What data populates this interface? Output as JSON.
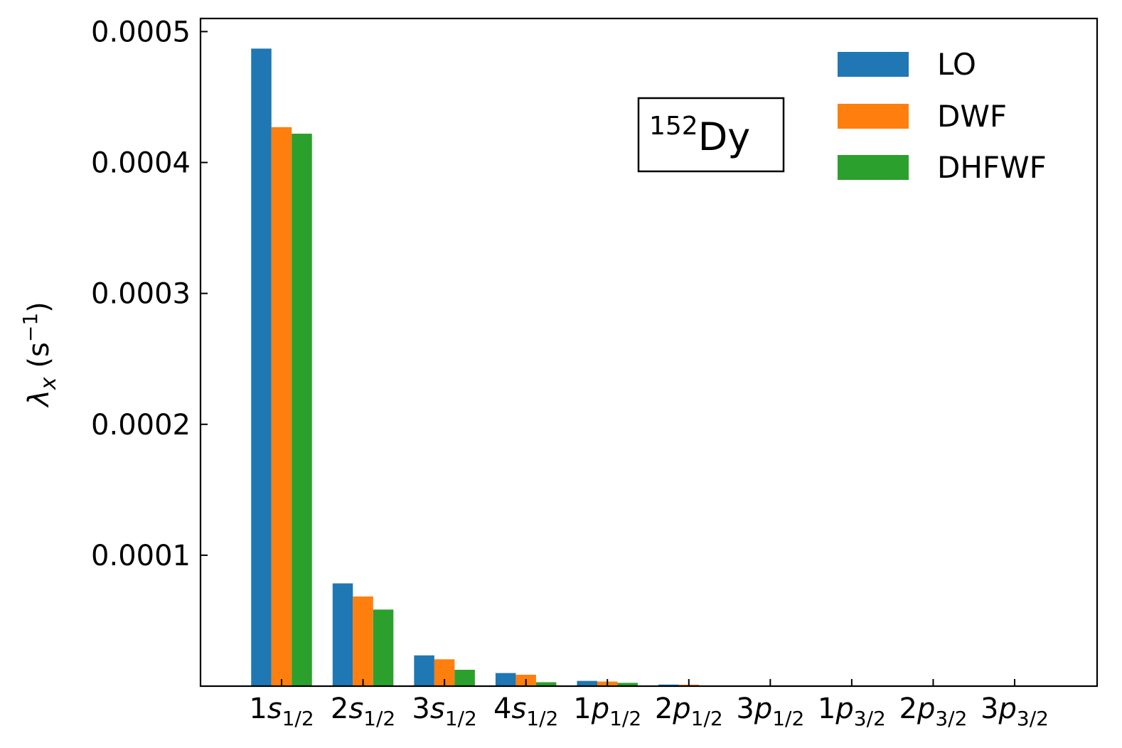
{
  "chart_data": {
    "type": "bar",
    "title": "",
    "xlabel": "",
    "ylabel": "λx (s⁻¹)",
    "ylabel_parts": {
      "symbol": "λ",
      "subscript": "x",
      "unit_open": "(s",
      "unit_exp": "−1",
      "unit_close": ")"
    },
    "categories": [
      "1s1/2",
      "2s1/2",
      "3s1/2",
      "4s1/2",
      "1p1/2",
      "2p1/2",
      "3p1/2",
      "1p3/2",
      "2p3/2",
      "3p3/2"
    ],
    "category_parts": [
      {
        "n": "1",
        "l": "s",
        "j": "1/2"
      },
      {
        "n": "2",
        "l": "s",
        "j": "1/2"
      },
      {
        "n": "3",
        "l": "s",
        "j": "1/2"
      },
      {
        "n": "4",
        "l": "s",
        "j": "1/2"
      },
      {
        "n": "1",
        "l": "p",
        "j": "1/2"
      },
      {
        "n": "2",
        "l": "p",
        "j": "1/2"
      },
      {
        "n": "3",
        "l": "p",
        "j": "1/2"
      },
      {
        "n": "1",
        "l": "p",
        "j": "3/2"
      },
      {
        "n": "2",
        "l": "p",
        "j": "3/2"
      },
      {
        "n": "3",
        "l": "p",
        "j": "3/2"
      }
    ],
    "series": [
      {
        "name": "LO",
        "color": "#1f77b4",
        "values": [
          0.000487,
          7.85e-05,
          2.35e-05,
          1e-05,
          4e-06,
          1.2e-06,
          3e-07,
          1e-07,
          0.0,
          0.0
        ]
      },
      {
        "name": "DWF",
        "color": "#ff7f0e",
        "values": [
          0.000427,
          6.85e-05,
          2.05e-05,
          8.7e-06,
          3.5e-06,
          1.1e-06,
          3e-07,
          1e-07,
          0.0,
          0.0
        ]
      },
      {
        "name": "DHFWF",
        "color": "#2ca02c",
        "values": [
          0.000422,
          5.85e-05,
          1.25e-05,
          3e-06,
          2.5e-06,
          5e-07,
          1e-07,
          0.0,
          0.0,
          0.0
        ]
      }
    ],
    "ylim": [
      0,
      0.00051
    ],
    "yticks": [
      0.0001,
      0.0002,
      0.0003,
      0.0004,
      0.0005
    ],
    "ytick_labels": [
      "0.0001",
      "0.0002",
      "0.0003",
      "0.0004",
      "0.0005"
    ],
    "legend_position": "top-right",
    "grid": false,
    "annotation": {
      "superscript": "152",
      "text": "Dy"
    }
  }
}
